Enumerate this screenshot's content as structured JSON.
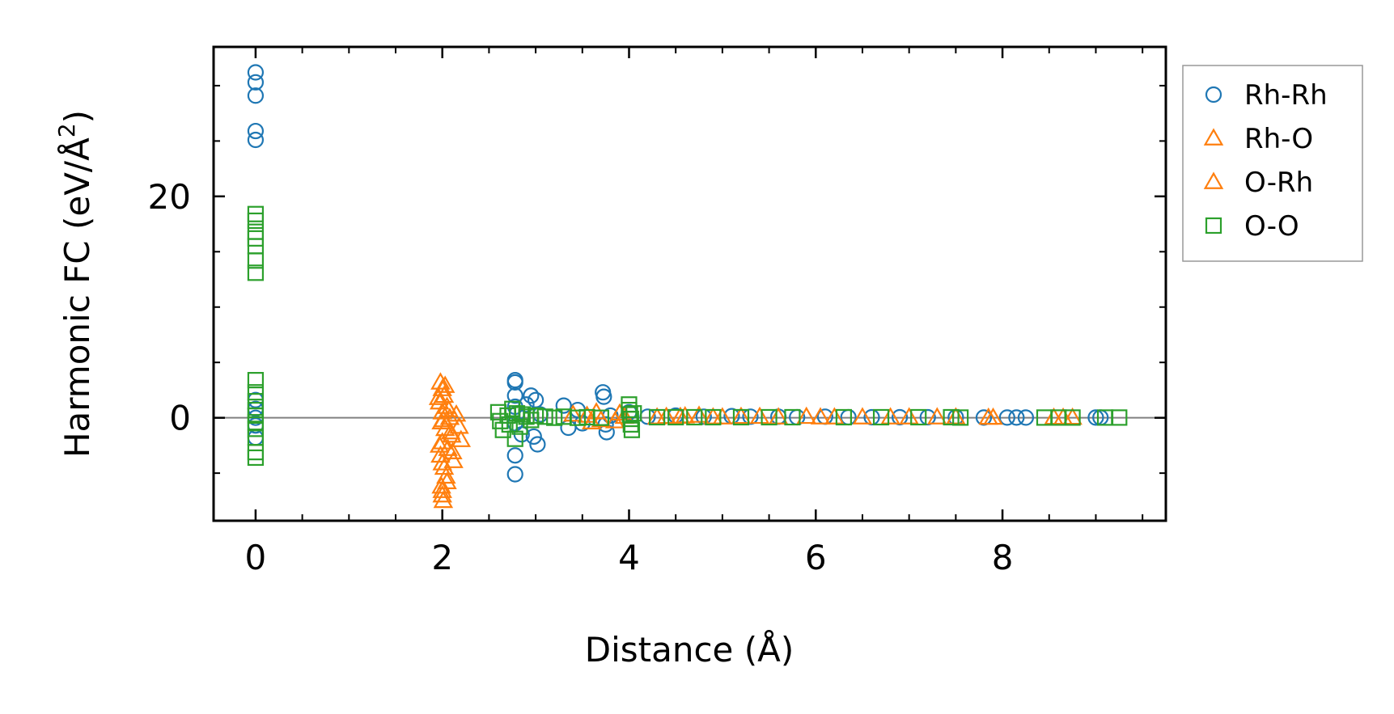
{
  "chart_data": {
    "type": "scatter",
    "xlabel": "Distance (Å)",
    "ylabel": "Harmonic FC (eV/Å²)",
    "ylabel_parts": {
      "main": "Harmonic FC (eV/Å",
      "sup": "2",
      "close": ")"
    },
    "xlim": [
      -0.45,
      9.75
    ],
    "ylim": [
      -9.3,
      33.5
    ],
    "x_ticks": [
      0,
      2,
      4,
      6,
      8
    ],
    "x_minor_ticks": [
      0.5,
      1,
      1.5,
      2.5,
      3,
      3.5,
      4.5,
      5,
      5.5,
      6.5,
      7,
      7.5,
      8.5,
      9,
      9.5
    ],
    "y_ticks": [
      0,
      20
    ],
    "y_minor_ticks": [
      -5,
      5,
      10,
      15,
      25,
      30
    ],
    "zero_line": true,
    "grid": false,
    "legend_position": "outside-right-top",
    "series": [
      {
        "name": "Rh-Rh",
        "marker": "circle",
        "color": "#1f77b4",
        "points": [
          [
            0,
            31.2
          ],
          [
            0,
            30.3
          ],
          [
            0,
            29.1
          ],
          [
            0,
            25.9
          ],
          [
            0,
            25.1
          ],
          [
            0,
            1.6
          ],
          [
            0,
            0.8
          ],
          [
            0,
            0.0
          ],
          [
            0,
            -0.7
          ],
          [
            0,
            -1.8
          ],
          [
            2.78,
            3.4
          ],
          [
            2.78,
            3.2
          ],
          [
            2.78,
            2.0
          ],
          [
            2.78,
            1.0
          ],
          [
            2.78,
            -0.5
          ],
          [
            2.78,
            -3.4
          ],
          [
            2.78,
            -5.1
          ],
          [
            2.8,
            0.4
          ],
          [
            2.85,
            -1.5
          ],
          [
            2.9,
            1.2
          ],
          [
            2.95,
            2.0
          ],
          [
            2.98,
            -1.7
          ],
          [
            3.0,
            1.6
          ],
          [
            3.02,
            -2.4
          ],
          [
            3.05,
            0.3
          ],
          [
            3.3,
            1.1
          ],
          [
            3.35,
            -0.9
          ],
          [
            3.45,
            0.7
          ],
          [
            3.5,
            -0.5
          ],
          [
            3.72,
            2.3
          ],
          [
            3.73,
            1.9
          ],
          [
            3.75,
            -0.6
          ],
          [
            3.76,
            -1.3
          ],
          [
            3.8,
            0.2
          ],
          [
            4.0,
            0.5
          ],
          [
            4.2,
            0.1
          ],
          [
            4.5,
            0.2
          ],
          [
            4.8,
            0.1
          ],
          [
            5.1,
            0.15
          ],
          [
            5.3,
            0.1
          ],
          [
            5.6,
            0.1
          ],
          [
            5.8,
            0.05
          ],
          [
            6.1,
            0.1
          ],
          [
            6.35,
            0.05
          ],
          [
            6.6,
            0.05
          ],
          [
            6.9,
            0.05
          ],
          [
            7.2,
            0.05
          ],
          [
            7.5,
            0.05
          ],
          [
            7.8,
            0.02
          ],
          [
            8.05,
            0.02
          ],
          [
            8.15,
            0.02
          ],
          [
            8.25,
            0.02
          ],
          [
            9.0,
            0.02
          ],
          [
            9.05,
            0.02
          ]
        ]
      },
      {
        "name": "Rh-O",
        "marker": "triangle",
        "color": "#ff7f0e",
        "points": [
          [
            1.98,
            3.2
          ],
          [
            2.0,
            2.6
          ],
          [
            2.02,
            2.0
          ],
          [
            1.97,
            1.4
          ],
          [
            2.05,
            1.0
          ],
          [
            2.0,
            0.5
          ],
          [
            2.08,
            0.0
          ],
          [
            1.99,
            -0.4
          ],
          [
            2.03,
            -1.0
          ],
          [
            2.1,
            -1.6
          ],
          [
            2.0,
            -2.2
          ],
          [
            2.06,
            -2.8
          ],
          [
            1.98,
            -3.4
          ],
          [
            2.12,
            -3.9
          ],
          [
            2.02,
            -4.5
          ],
          [
            2.04,
            -5.3
          ],
          [
            1.99,
            -6.2
          ],
          [
            2.0,
            -7.0
          ],
          [
            2.01,
            -7.5
          ],
          [
            2.15,
            0.3
          ],
          [
            2.18,
            -0.8
          ],
          [
            2.2,
            -2.0
          ],
          [
            3.4,
            0.3
          ],
          [
            3.6,
            -0.4
          ],
          [
            3.65,
            0.5
          ],
          [
            3.85,
            -0.3
          ],
          [
            3.9,
            0.4
          ],
          [
            4.4,
            0.1
          ],
          [
            4.6,
            0.15
          ],
          [
            4.75,
            0.2
          ],
          [
            5.0,
            0.05
          ],
          [
            5.4,
            0.1
          ],
          [
            5.9,
            0.1
          ],
          [
            6.05,
            0.05
          ],
          [
            6.5,
            0.05
          ],
          [
            7.0,
            0.05
          ],
          [
            7.5,
            0.05
          ],
          [
            7.9,
            0.02
          ],
          [
            8.65,
            0.02
          ],
          [
            8.75,
            0.02
          ]
        ]
      },
      {
        "name": "O-Rh",
        "marker": "triangle",
        "color": "#ff7f0e",
        "points": [
          [
            2.03,
            2.9
          ],
          [
            1.96,
            1.8
          ],
          [
            2.07,
            0.7
          ],
          [
            2.01,
            -0.2
          ],
          [
            2.09,
            -1.3
          ],
          [
            1.97,
            -2.5
          ],
          [
            2.11,
            -3.1
          ],
          [
            2.0,
            -4.1
          ],
          [
            2.05,
            -5.8
          ],
          [
            2.0,
            -6.6
          ],
          [
            3.55,
            0.2
          ],
          [
            3.7,
            -0.2
          ],
          [
            3.95,
            0.1
          ],
          [
            4.3,
            0.05
          ],
          [
            4.55,
            0.1
          ],
          [
            4.9,
            0.05
          ],
          [
            5.2,
            0.1
          ],
          [
            5.6,
            0.05
          ],
          [
            6.2,
            0.05
          ],
          [
            6.8,
            0.05
          ],
          [
            7.3,
            0.05
          ],
          [
            7.85,
            0.02
          ],
          [
            8.55,
            0.02
          ]
        ]
      },
      {
        "name": "O-O",
        "marker": "square",
        "color": "#2ca02c",
        "points": [
          [
            0,
            18.4
          ],
          [
            0,
            17.8
          ],
          [
            0,
            16.8
          ],
          [
            0,
            16.2
          ],
          [
            0,
            15.5
          ],
          [
            0,
            14.2
          ],
          [
            0,
            13.1
          ],
          [
            0,
            3.4
          ],
          [
            0,
            2.3
          ],
          [
            0,
            1.5
          ],
          [
            0,
            0.7
          ],
          [
            0,
            0.2
          ],
          [
            0,
            -0.4
          ],
          [
            0,
            -1.0
          ],
          [
            0,
            -1.8
          ],
          [
            0,
            -3.1
          ],
          [
            0,
            -3.6
          ],
          [
            2.6,
            0.5
          ],
          [
            2.62,
            -0.3
          ],
          [
            2.65,
            -1.1
          ],
          [
            2.7,
            0.2
          ],
          [
            2.72,
            -0.6
          ],
          [
            2.75,
            0.8
          ],
          [
            2.78,
            -1.9
          ],
          [
            2.8,
            0.4
          ],
          [
            2.83,
            -0.8
          ],
          [
            2.86,
            0.3
          ],
          [
            2.9,
            0.1
          ],
          [
            2.95,
            -0.2
          ],
          [
            3.0,
            0.2
          ],
          [
            3.1,
            0.1
          ],
          [
            3.2,
            0.0
          ],
          [
            3.3,
            0.1
          ],
          [
            3.45,
            0.0
          ],
          [
            3.55,
            0.05
          ],
          [
            3.7,
            0.0
          ],
          [
            4.0,
            1.2
          ],
          [
            4.0,
            0.7
          ],
          [
            4.01,
            0.3
          ],
          [
            4.02,
            -0.1
          ],
          [
            4.02,
            -0.6
          ],
          [
            4.03,
            -1.1
          ],
          [
            4.05,
            0.4
          ],
          [
            4.3,
            0.05
          ],
          [
            4.5,
            0.05
          ],
          [
            4.7,
            0.05
          ],
          [
            4.9,
            0.05
          ],
          [
            5.2,
            0.05
          ],
          [
            5.5,
            0.05
          ],
          [
            5.75,
            0.05
          ],
          [
            6.3,
            0.05
          ],
          [
            6.7,
            0.05
          ],
          [
            7.1,
            0.05
          ],
          [
            7.45,
            0.05
          ],
          [
            7.55,
            0.02
          ],
          [
            8.45,
            0.02
          ],
          [
            8.6,
            0.02
          ],
          [
            8.75,
            0.02
          ],
          [
            9.1,
            0.02
          ],
          [
            9.25,
            0.02
          ]
        ]
      }
    ]
  }
}
